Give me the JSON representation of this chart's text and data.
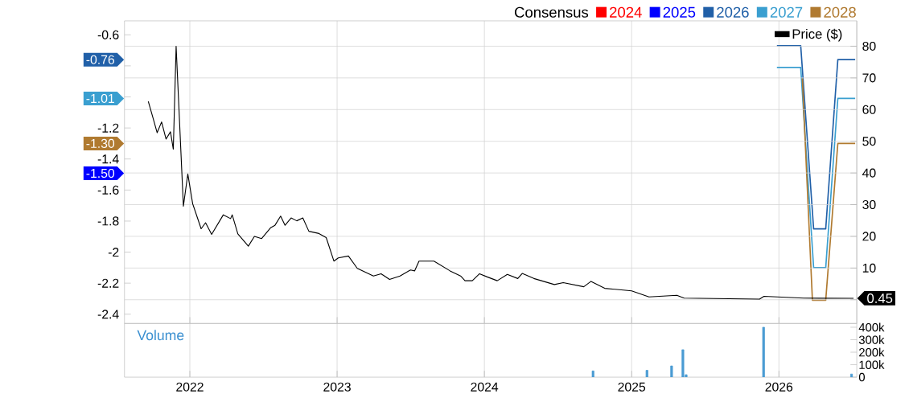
{
  "chart_data": [
    {
      "type": "line",
      "legend_title": "Consensus",
      "legend": "top right",
      "grid": true,
      "tick_labels": "y",
      "xlim": [
        "2021-07-23",
        "2026-07-13"
      ],
      "xticks": [
        {
          "value": "2022-01-01",
          "label": null
        },
        {
          "value": "2023-01-01",
          "label": null
        },
        {
          "value": "2024-01-01",
          "label": null
        },
        {
          "value": "2025-01-01",
          "label": null
        },
        {
          "value": "2026-01-01",
          "label": null
        }
      ],
      "ylim": [
        -2.46,
        -0.51
      ],
      "yticks": [
        -0.6,
        {
          "value": -0.8,
          "label": null
        },
        {
          "value": -1,
          "label": null
        },
        -1.2,
        -1.4,
        -1.6,
        -1.8,
        -2,
        -2.2,
        -2.4
      ],
      "y2lim": [
        -7.5,
        88
      ],
      "y2ticks": [
        {
          "value": 0,
          "label": null
        },
        10,
        20,
        30,
        40,
        50,
        60,
        70,
        80
      ],
      "annotations": [
        "-0.76",
        "-1.01",
        "-1.30",
        "-1.50"
      ],
      "series": [
        {
          "name": "2024",
          "color": "#ff0000"
        },
        {
          "name": "2025",
          "color": "#0000ff"
        },
        {
          "name": "2026",
          "color": "#2160a8",
          "x": [
            "2025-12-27",
            "2026-02-24",
            "2026-03-28",
            "2026-04-27",
            "2026-05-27",
            "2026-07-09"
          ],
          "values": [
            -0.67,
            -0.67,
            -1.85,
            -1.85,
            -0.76,
            -0.76
          ]
        },
        {
          "name": "2027",
          "color": "#3a9fd0",
          "x": [
            "2025-12-27",
            "2026-02-24",
            "2026-03-28",
            "2026-04-27",
            "2026-05-27",
            "2026-07-09"
          ],
          "values": [
            -0.81,
            -0.81,
            -2.1,
            -2.1,
            -1.01,
            -1.01
          ]
        },
        {
          "name": "2028",
          "color": "#b07a30",
          "x": [
            "2026-02-28",
            "2026-03-25",
            "2026-04-27",
            "2026-05-27",
            "2026-07-09"
          ],
          "values": [
            -0.88,
            -2.31,
            -2.31,
            -1.3,
            -1.3
          ]
        },
        {
          "name": "Price ($)",
          "color": "#000000",
          "axis": "y2",
          "x": [
            "2021-09-20",
            "2021-10-01",
            "2021-10-12",
            "2021-10-23",
            "2021-11-03",
            "2021-11-14",
            "2021-11-21",
            "2021-11-28",
            "2021-12-16",
            "2021-12-27",
            "2022-01-08",
            "2022-01-29",
            "2022-02-09",
            "2022-02-24",
            "2022-03-25",
            "2022-04-12",
            "2022-04-16",
            "2022-04-30",
            "2022-05-26",
            "2022-06-10",
            "2022-06-28",
            "2022-07-20",
            "2022-07-31",
            "2022-08-14",
            "2022-08-25",
            "2022-09-09",
            "2022-09-23",
            "2022-10-08",
            "2022-10-23",
            "2022-11-17",
            "2022-12-05",
            "2022-12-24",
            "2023-01-04",
            "2023-01-29",
            "2023-02-20",
            "2023-04-01",
            "2023-04-20",
            "2023-05-11",
            "2023-06-06",
            "2023-07-02",
            "2023-07-12",
            "2023-07-23",
            "2023-08-29",
            "2023-10-08",
            "2023-11-03",
            "2023-11-14",
            "2023-12-02",
            "2023-12-20",
            "2024-01-08",
            "2024-02-02",
            "2024-02-27",
            "2024-03-24",
            "2024-04-04",
            "2024-05-03",
            "2024-06-23",
            "2024-07-15",
            "2024-09-04",
            "2024-09-22",
            "2024-10-26",
            "2025-01-01",
            "2025-02-13",
            "2025-04-23",
            "2025-05-11",
            "2025-11-14",
            "2025-11-25",
            "2026-03-03",
            "2026-07-05"
          ],
          "values": [
            62.6,
            57.7,
            52.7,
            56.1,
            50.7,
            53,
            47.5,
            80,
            29.5,
            39.7,
            30.3,
            22.4,
            24.3,
            20.6,
            26.8,
            25.6,
            26.8,
            20.8,
            16.9,
            20,
            19.3,
            22.7,
            23.5,
            26.4,
            23.5,
            25.8,
            24.9,
            25.8,
            21.6,
            20.9,
            19.6,
            12.2,
            13.2,
            13.8,
            9.9,
            7.5,
            8.2,
            6.4,
            7.5,
            9.4,
            9.1,
            12.2,
            12.2,
            9.1,
            7.5,
            6,
            6,
            8.2,
            7.2,
            6,
            8,
            6.7,
            8.3,
            6.7,
            4.8,
            5.4,
            4.1,
            5.8,
            3.6,
            2.8,
            0.9,
            1.4,
            0.5,
            0.2,
            1.1,
            0.5,
            0.45
          ],
          "value_labels": [
            null,
            null,
            null,
            null,
            null,
            null,
            null,
            null,
            null,
            null,
            null,
            null,
            null,
            null,
            null,
            null,
            null,
            null,
            null,
            null,
            null,
            null,
            null,
            null,
            null,
            null,
            null,
            null,
            null,
            null,
            null,
            null,
            null,
            null,
            null,
            null,
            null,
            null,
            null,
            null,
            null,
            null,
            null,
            null,
            null,
            null,
            null,
            null,
            null,
            null,
            null,
            null,
            null,
            null,
            null,
            null,
            null,
            null,
            null,
            null,
            null,
            null,
            null,
            null,
            null,
            null,
            "0.45"
          ]
        }
      ]
    },
    {
      "type": "bar",
      "ylabel": "Volume",
      "grid": "x",
      "color": "#4b9cd3",
      "xlim": [
        "2021-07-23",
        "2026-07-13"
      ],
      "xticks": [
        {
          "value": "2022-01-01",
          "label": "2022"
        },
        {
          "value": "2023-01-01",
          "label": "2023"
        },
        {
          "value": "2024-01-01",
          "label": "2024"
        },
        {
          "value": "2025-01-01",
          "label": "2025"
        },
        {
          "value": "2026-01-01",
          "label": "2026"
        }
      ],
      "ylim": [
        0,
        430000
      ],
      "yticks": [
        0,
        {
          "value": 100000,
          "label": "100k"
        },
        {
          "value": 200000,
          "label": "200k"
        },
        {
          "value": 300000,
          "label": "300k"
        },
        {
          "value": 400000,
          "label": "400k"
        }
      ],
      "x": [
        "2024-09-27",
        "2025-02-08",
        "2025-04-10",
        "2025-05-08",
        "2025-05-16",
        "2025-11-24",
        "2026-06-30"
      ],
      "values": [
        50000,
        55000,
        90000,
        220000,
        20000,
        400000,
        25000
      ]
    }
  ]
}
